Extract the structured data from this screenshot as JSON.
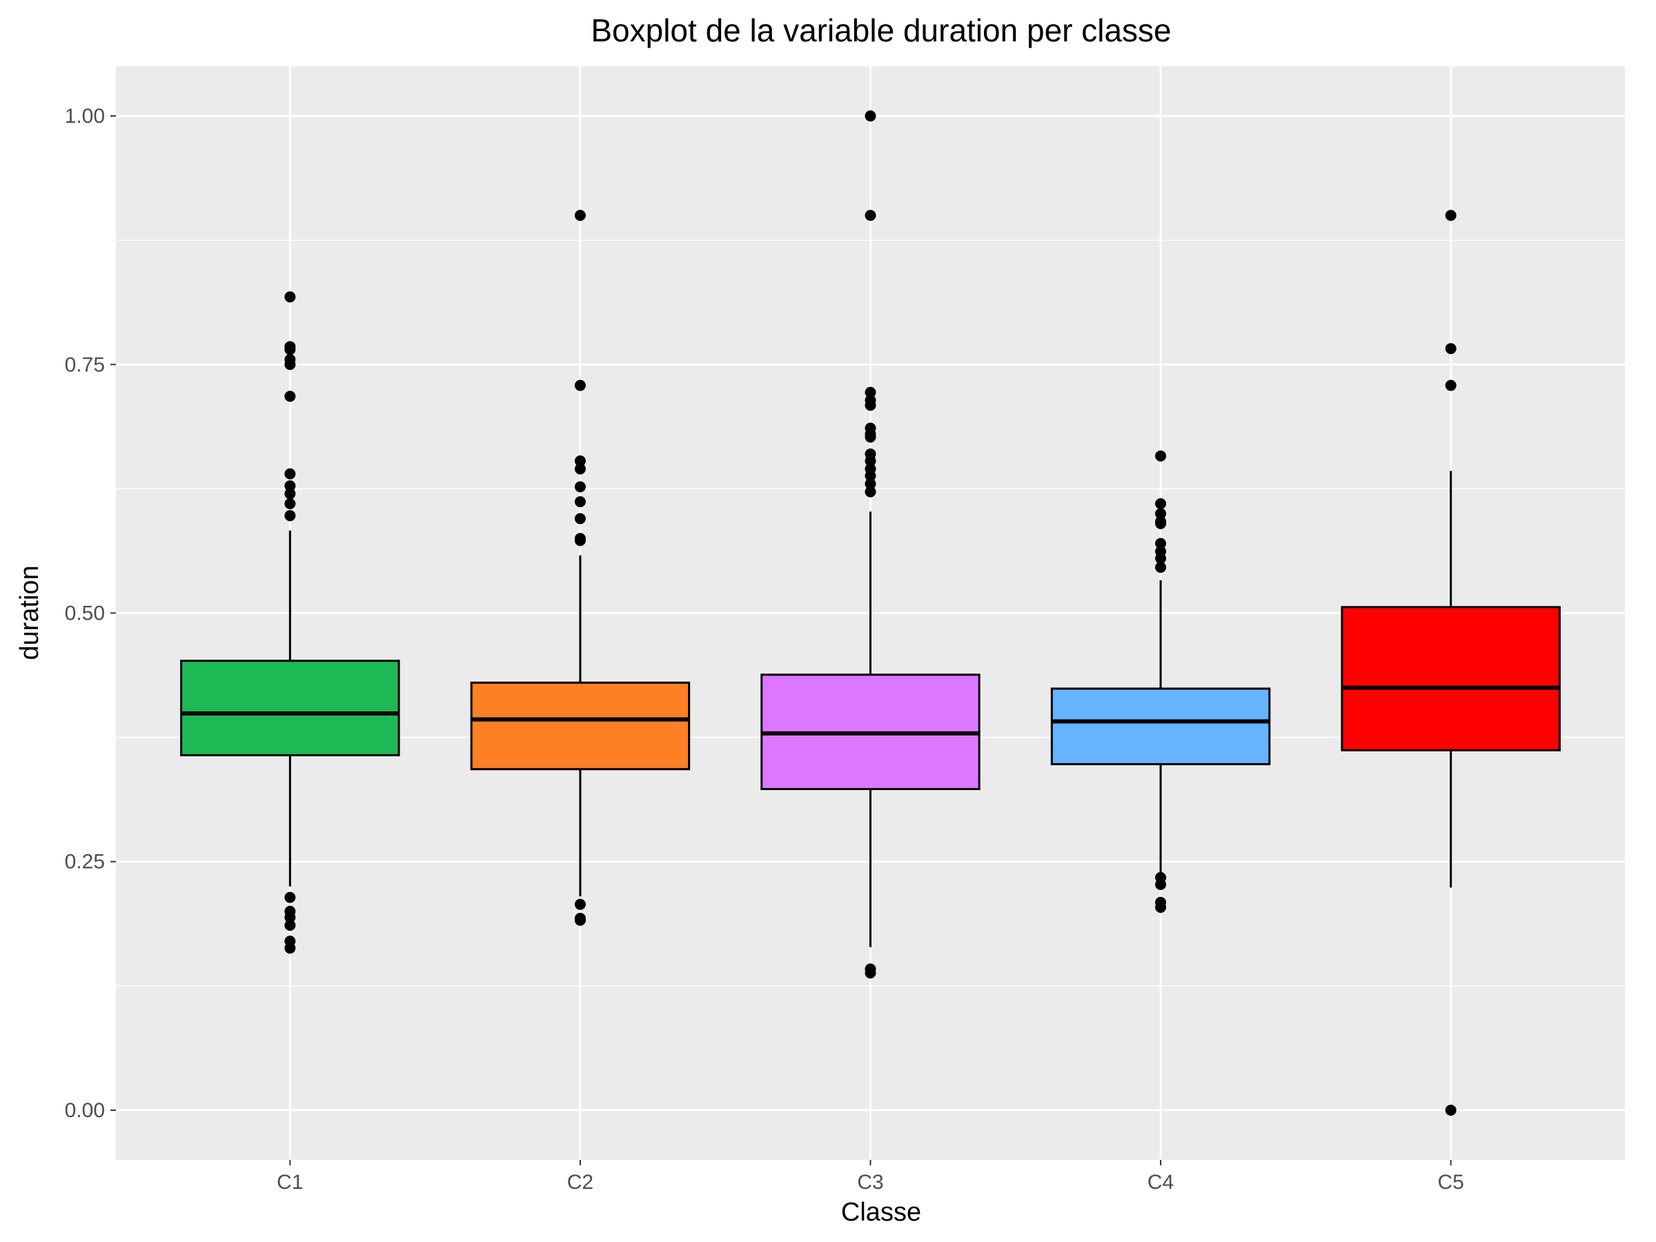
{
  "chart_data": {
    "type": "boxplot",
    "title": "Boxplot de la variable duration per classe",
    "xlabel": "Classe",
    "ylabel": "duration",
    "ylim": [
      -0.05,
      1.05
    ],
    "y_ticks": [
      0.0,
      0.25,
      0.5,
      0.75,
      1.0
    ],
    "y_tick_labels": [
      "0.00",
      "0.25",
      "0.50",
      "0.75",
      "1.00"
    ],
    "grid": true,
    "legend": "none",
    "categories": [
      "C1",
      "C2",
      "C3",
      "C4",
      "C5"
    ],
    "series": [
      {
        "category": "C1",
        "color": "#1DB954",
        "q1": 0.357,
        "median": 0.399,
        "q3": 0.452,
        "whisker_low": 0.225,
        "whisker_high": 0.583,
        "outliers": [
          0.818,
          0.768,
          0.765,
          0.755,
          0.75,
          0.718,
          0.64,
          0.628,
          0.62,
          0.61,
          0.598,
          0.214,
          0.2,
          0.194,
          0.186,
          0.17,
          0.163
        ]
      },
      {
        "category": "C2",
        "color": "#FF7F24",
        "q1": 0.343,
        "median": 0.393,
        "q3": 0.43,
        "whisker_low": 0.215,
        "whisker_high": 0.558,
        "outliers": [
          0.9,
          0.729,
          0.653,
          0.645,
          0.627,
          0.612,
          0.595,
          0.575,
          0.573,
          0.207,
          0.193,
          0.191
        ]
      },
      {
        "category": "C3",
        "color": "#DD77FF",
        "q1": 0.323,
        "median": 0.379,
        "q3": 0.438,
        "whisker_low": 0.164,
        "whisker_high": 0.602,
        "outliers": [
          1.0,
          0.9,
          0.722,
          0.714,
          0.709,
          0.686,
          0.68,
          0.677,
          0.66,
          0.653,
          0.645,
          0.638,
          0.63,
          0.622,
          0.142,
          0.138
        ]
      },
      {
        "category": "C4",
        "color": "#66B3FF",
        "q1": 0.348,
        "median": 0.391,
        "q3": 0.424,
        "whisker_low": 0.237,
        "whisker_high": 0.533,
        "outliers": [
          0.658,
          0.61,
          0.6,
          0.592,
          0.59,
          0.57,
          0.562,
          0.555,
          0.546,
          0.234,
          0.227,
          0.209,
          0.204
        ]
      },
      {
        "category": "C5",
        "color": "#FF0000",
        "q1": 0.362,
        "median": 0.425,
        "q3": 0.506,
        "whisker_low": 0.224,
        "whisker_high": 0.643,
        "outliers": [
          0.9,
          0.766,
          0.729,
          0.0
        ]
      }
    ]
  }
}
